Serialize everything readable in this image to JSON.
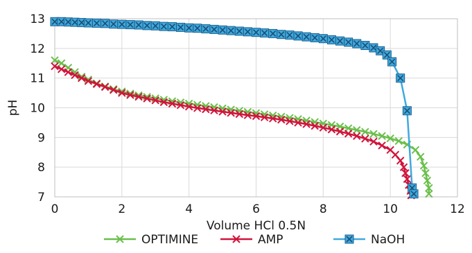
{
  "chart_data": {
    "type": "scatter",
    "title": "",
    "xlabel": "Volume HCl 0.5N",
    "ylabel": "pH",
    "xlim": [
      0,
      12
    ],
    "ylim": [
      7,
      13
    ],
    "xticks": [
      "0",
      "2",
      "4",
      "6",
      "8",
      "10",
      "12"
    ],
    "yticks": [
      "7",
      "8",
      "9",
      "10",
      "11",
      "12",
      "13"
    ],
    "grid": true,
    "legend_position": "bottom",
    "series": [
      {
        "name": "OPTIMINE",
        "color": "#6abf4b",
        "marker": "x",
        "points": [
          [
            0,
            11.6
          ],
          [
            0.2,
            11.5
          ],
          [
            0.4,
            11.35
          ],
          [
            0.6,
            11.2
          ],
          [
            0.8,
            11.05
          ],
          [
            1.0,
            10.95
          ],
          [
            1.25,
            10.82
          ],
          [
            1.5,
            10.72
          ],
          [
            1.75,
            10.63
          ],
          [
            2.0,
            10.55
          ],
          [
            2.25,
            10.48
          ],
          [
            2.5,
            10.42
          ],
          [
            2.75,
            10.37
          ],
          [
            3.0,
            10.32
          ],
          [
            3.25,
            10.27
          ],
          [
            3.5,
            10.22
          ],
          [
            3.75,
            10.18
          ],
          [
            4.0,
            10.14
          ],
          [
            4.25,
            10.1
          ],
          [
            4.5,
            10.06
          ],
          [
            4.75,
            10.02
          ],
          [
            5.0,
            9.98
          ],
          [
            5.25,
            9.94
          ],
          [
            5.5,
            9.9
          ],
          [
            5.75,
            9.86
          ],
          [
            6.0,
            9.82
          ],
          [
            6.25,
            9.78
          ],
          [
            6.5,
            9.74
          ],
          [
            6.75,
            9.7
          ],
          [
            7.0,
            9.66
          ],
          [
            7.25,
            9.62
          ],
          [
            7.5,
            9.57
          ],
          [
            7.75,
            9.52
          ],
          [
            8.0,
            9.47
          ],
          [
            8.25,
            9.42
          ],
          [
            8.5,
            9.37
          ],
          [
            8.75,
            9.31
          ],
          [
            9.0,
            9.25
          ],
          [
            9.25,
            9.19
          ],
          [
            9.5,
            9.12
          ],
          [
            9.75,
            9.05
          ],
          [
            10.0,
            8.97
          ],
          [
            10.25,
            8.88
          ],
          [
            10.5,
            8.76
          ],
          [
            10.75,
            8.58
          ],
          [
            10.9,
            8.35
          ],
          [
            11.0,
            8.05
          ],
          [
            11.05,
            7.8
          ],
          [
            11.1,
            7.55
          ],
          [
            11.15,
            7.3
          ],
          [
            11.15,
            7.1
          ]
        ]
      },
      {
        "name": "AMP",
        "color": "#d0143c",
        "marker": "x",
        "points": [
          [
            0,
            11.4
          ],
          [
            0.2,
            11.3
          ],
          [
            0.4,
            11.2
          ],
          [
            0.6,
            11.1
          ],
          [
            0.8,
            11.0
          ],
          [
            1.0,
            10.9
          ],
          [
            1.25,
            10.8
          ],
          [
            1.5,
            10.7
          ],
          [
            1.75,
            10.6
          ],
          [
            2.0,
            10.5
          ],
          [
            2.25,
            10.43
          ],
          [
            2.5,
            10.37
          ],
          [
            2.75,
            10.31
          ],
          [
            3.0,
            10.25
          ],
          [
            3.25,
            10.19
          ],
          [
            3.5,
            10.14
          ],
          [
            3.75,
            10.09
          ],
          [
            4.0,
            10.04
          ],
          [
            4.25,
            9.99
          ],
          [
            4.5,
            9.95
          ],
          [
            4.75,
            9.91
          ],
          [
            5.0,
            9.87
          ],
          [
            5.25,
            9.83
          ],
          [
            5.5,
            9.79
          ],
          [
            5.75,
            9.75
          ],
          [
            6.0,
            9.72
          ],
          [
            6.25,
            9.68
          ],
          [
            6.5,
            9.64
          ],
          [
            6.75,
            9.6
          ],
          [
            7.0,
            9.55
          ],
          [
            7.25,
            9.5
          ],
          [
            7.5,
            9.45
          ],
          [
            7.75,
            9.39
          ],
          [
            8.0,
            9.33
          ],
          [
            8.25,
            9.27
          ],
          [
            8.5,
            9.2
          ],
          [
            8.75,
            9.13
          ],
          [
            9.0,
            9.05
          ],
          [
            9.25,
            8.96
          ],
          [
            9.5,
            8.86
          ],
          [
            9.75,
            8.73
          ],
          [
            10.0,
            8.58
          ],
          [
            10.15,
            8.42
          ],
          [
            10.3,
            8.22
          ],
          [
            10.4,
            8.0
          ],
          [
            10.45,
            7.8
          ],
          [
            10.5,
            7.6
          ],
          [
            10.55,
            7.4
          ],
          [
            10.6,
            7.2
          ],
          [
            10.62,
            7.05
          ]
        ]
      },
      {
        "name": "NaOH",
        "color": "#3fa9df",
        "marker": "square-x",
        "points": [
          [
            0,
            12.9
          ],
          [
            0.2,
            12.9
          ],
          [
            0.4,
            12.89
          ],
          [
            0.6,
            12.88
          ],
          [
            0.8,
            12.87
          ],
          [
            1.0,
            12.86
          ],
          [
            1.25,
            12.85
          ],
          [
            1.5,
            12.84
          ],
          [
            1.75,
            12.82
          ],
          [
            2.0,
            12.81
          ],
          [
            2.25,
            12.8
          ],
          [
            2.5,
            12.79
          ],
          [
            2.75,
            12.77
          ],
          [
            3.0,
            12.76
          ],
          [
            3.25,
            12.74
          ],
          [
            3.5,
            12.73
          ],
          [
            3.75,
            12.71
          ],
          [
            4.0,
            12.69
          ],
          [
            4.25,
            12.68
          ],
          [
            4.5,
            12.66
          ],
          [
            4.75,
            12.64
          ],
          [
            5.0,
            12.62
          ],
          [
            5.25,
            12.6
          ],
          [
            5.5,
            12.58
          ],
          [
            5.75,
            12.56
          ],
          [
            6.0,
            12.54
          ],
          [
            6.25,
            12.52
          ],
          [
            6.5,
            12.5
          ],
          [
            6.75,
            12.47
          ],
          [
            7.0,
            12.45
          ],
          [
            7.25,
            12.42
          ],
          [
            7.5,
            12.39
          ],
          [
            7.75,
            12.36
          ],
          [
            8.0,
            12.33
          ],
          [
            8.25,
            12.29
          ],
          [
            8.5,
            12.25
          ],
          [
            8.75,
            12.21
          ],
          [
            9.0,
            12.16
          ],
          [
            9.25,
            12.1
          ],
          [
            9.5,
            12.02
          ],
          [
            9.7,
            11.92
          ],
          [
            9.9,
            11.78
          ],
          [
            10.05,
            11.55
          ],
          [
            10.3,
            11.0
          ],
          [
            10.5,
            9.9
          ],
          [
            10.65,
            7.3
          ],
          [
            10.7,
            7.1
          ]
        ]
      }
    ]
  }
}
